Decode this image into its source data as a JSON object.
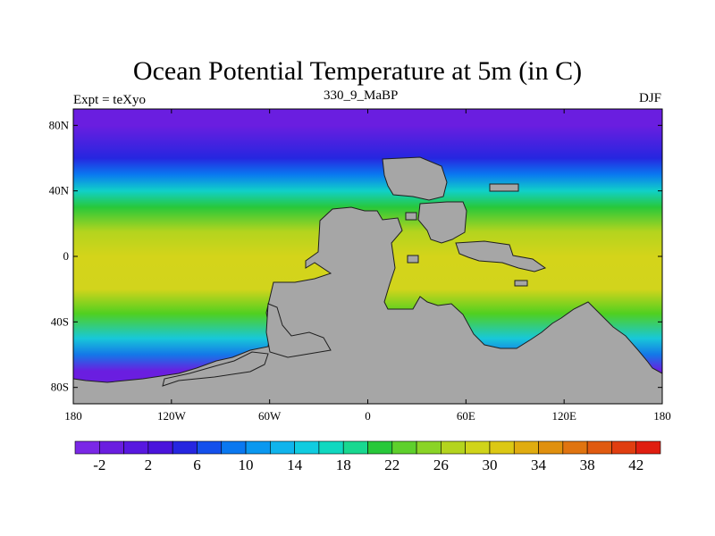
{
  "title": "Ocean Potential Temperature at 5m (in C)",
  "left_label": "Expt = teXyo",
  "center_label": "330_9_MaBP",
  "right_label": "DJF",
  "map": {
    "lat_ticks": [
      "80N",
      "40N",
      "0",
      "40S",
      "80S"
    ],
    "lon_ticks": [
      "180",
      "120W",
      "60W",
      "0",
      "60E",
      "120E",
      "180"
    ],
    "land_color": "#a6a6a6",
    "ocean_gradient_by_latitude": [
      {
        "lat": "80N",
        "color": "#6a1ee0"
      },
      {
        "lat": "60N",
        "color": "#2626e0"
      },
      {
        "lat": "50N",
        "color": "#0a78f0"
      },
      {
        "lat": "40N",
        "color": "#10d0c8"
      },
      {
        "lat": "30N",
        "color": "#28c83a"
      },
      {
        "lat": "15N",
        "color": "#b4d41e"
      },
      {
        "lat": "0",
        "color": "#d4d41a"
      },
      {
        "lat": "20S",
        "color": "#d2d41c"
      },
      {
        "lat": "35S",
        "color": "#50d020"
      },
      {
        "lat": "50S",
        "color": "#18c8d8"
      },
      {
        "lat": "60S",
        "color": "#1478e8"
      },
      {
        "lat": "70S",
        "color": "#6a1ee0"
      }
    ]
  },
  "colorbar": {
    "labels": [
      "-2",
      "2",
      "6",
      "10",
      "14",
      "18",
      "22",
      "26",
      "30",
      "34",
      "38",
      "42"
    ],
    "colors": [
      "#7a28e6",
      "#6a1ee0",
      "#5818e0",
      "#4a14dc",
      "#2626e0",
      "#1450ec",
      "#0a78f0",
      "#0a98f0",
      "#10b4ec",
      "#10cce0",
      "#10d8c0",
      "#18d890",
      "#28c83a",
      "#5ed02c",
      "#8ad426",
      "#b4d41e",
      "#d0d41a",
      "#dcc814",
      "#e0ac10",
      "#e0900e",
      "#e07410",
      "#e05a10",
      "#e03e10",
      "#e01e10"
    ]
  }
}
